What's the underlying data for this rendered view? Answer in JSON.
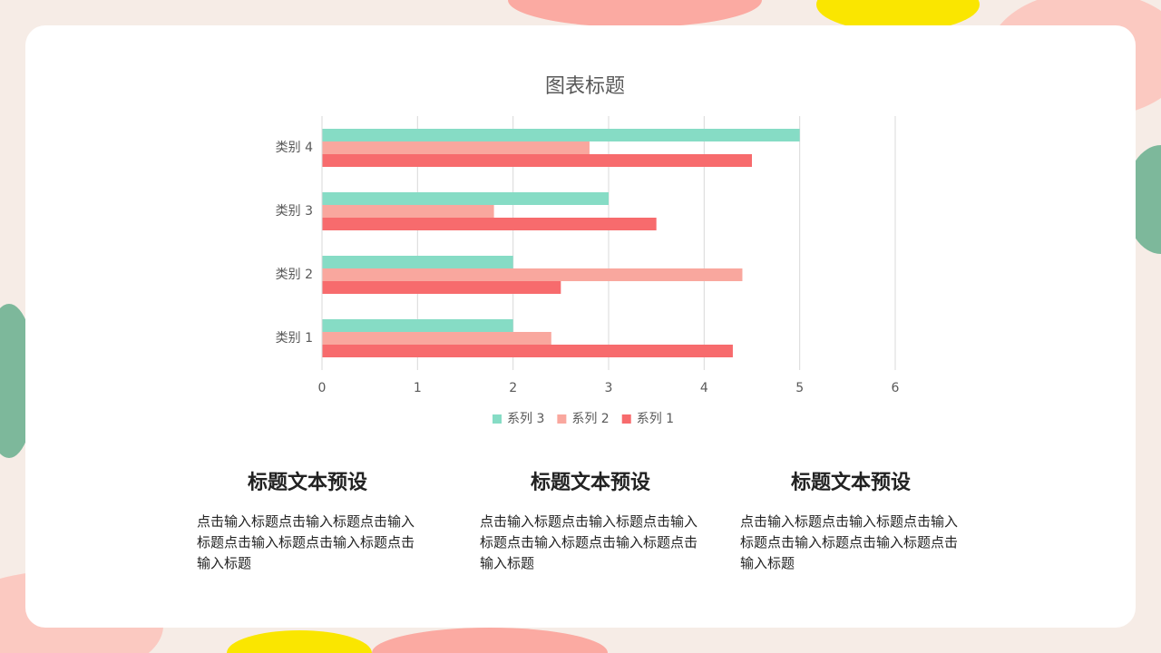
{
  "chart_data": {
    "type": "bar",
    "orientation": "horizontal",
    "title": "图表标题",
    "categories": [
      "类别 1",
      "类别 2",
      "类别 3",
      "类别 4"
    ],
    "series": [
      {
        "name": "系列 3",
        "color": "#86dcc5",
        "values": [
          2,
          2,
          3,
          5
        ]
      },
      {
        "name": "系列 2",
        "color": "#f9a79e",
        "values": [
          2.4,
          4.4,
          1.8,
          2.8
        ]
      },
      {
        "name": "系列 1",
        "color": "#f76b6d",
        "values": [
          4.3,
          2.5,
          3.5,
          4.5
        ]
      }
    ],
    "xlim": [
      0,
      6
    ],
    "xticks": [
      0,
      1,
      2,
      3,
      4,
      5,
      6
    ],
    "grid": true,
    "legend": "bottom"
  },
  "sections": [
    {
      "title": "标题文本预设",
      "body": "点击输入标题点击输入标题点击输入标题点击输入标题点击输入标题点击输入标题"
    },
    {
      "title": "标题文本预设",
      "body": "点击输入标题点击输入标题点击输入标题点击输入标题点击输入标题点击输入标题"
    },
    {
      "title": "标题文本预设",
      "body": "点击输入标题点击输入标题点击输入标题点击输入标题点击输入标题点击输入标题"
    }
  ]
}
